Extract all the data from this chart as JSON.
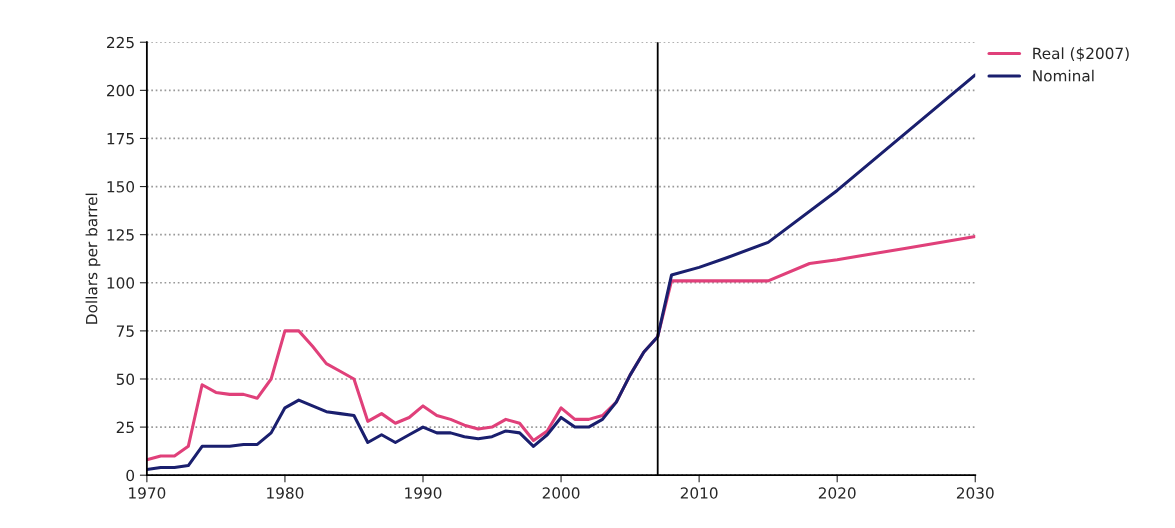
{
  "chart_data": {
    "type": "line",
    "ylabel": "Dollars per barrel",
    "xlim": [
      1970,
      2030
    ],
    "xticks": [
      1970,
      1980,
      1990,
      2000,
      2010,
      2020,
      2030
    ],
    "ylim": [
      0,
      225
    ],
    "yticks": [
      0,
      25,
      50,
      75,
      100,
      125,
      150,
      175,
      200,
      225
    ],
    "grid": "y",
    "legend": "top right",
    "ref_lines": [
      {
        "axis": "x",
        "value": 2007,
        "color": "#000000"
      }
    ],
    "series": [
      {
        "name": "Real ($2007)",
        "color": "#e0407a",
        "x": [
          1970,
          1971,
          1972,
          1973,
          1974,
          1975,
          1976,
          1977,
          1978,
          1979,
          1980,
          1981,
          1982,
          1983,
          1984,
          1985,
          1986,
          1987,
          1988,
          1989,
          1990,
          1991,
          1992,
          1993,
          1994,
          1995,
          1996,
          1997,
          1998,
          1999,
          2000,
          2001,
          2002,
          2003,
          2004,
          2005,
          2006,
          2007,
          2008,
          2015,
          2018,
          2020,
          2025,
          2030
        ],
        "values": [
          8,
          10,
          10,
          15,
          47,
          43,
          42,
          42,
          40,
          50,
          75,
          75,
          67,
          58,
          54,
          50,
          28,
          32,
          27,
          30,
          36,
          31,
          29,
          26,
          24,
          25,
          29,
          27,
          18,
          23,
          35,
          29,
          29,
          31,
          38,
          52,
          64,
          72,
          101,
          101,
          110,
          112,
          118,
          124
        ]
      },
      {
        "name": "Nominal",
        "color": "#1a1f6e",
        "x": [
          1970,
          1971,
          1972,
          1973,
          1974,
          1975,
          1976,
          1977,
          1978,
          1979,
          1980,
          1981,
          1982,
          1983,
          1984,
          1985,
          1986,
          1987,
          1988,
          1989,
          1990,
          1991,
          1992,
          1993,
          1994,
          1995,
          1996,
          1997,
          1998,
          1999,
          2000,
          2001,
          2002,
          2003,
          2004,
          2005,
          2006,
          2007,
          2008,
          2010,
          2012,
          2015,
          2020,
          2025,
          2030
        ],
        "values": [
          3,
          4,
          4,
          5,
          15,
          15,
          15,
          16,
          16,
          22,
          35,
          39,
          36,
          33,
          32,
          31,
          17,
          21,
          17,
          21,
          25,
          22,
          22,
          20,
          19,
          20,
          23,
          22,
          15,
          21,
          30,
          25,
          25,
          29,
          38,
          52,
          64,
          72,
          104,
          108,
          113,
          121,
          148,
          178,
          208
        ]
      }
    ]
  }
}
